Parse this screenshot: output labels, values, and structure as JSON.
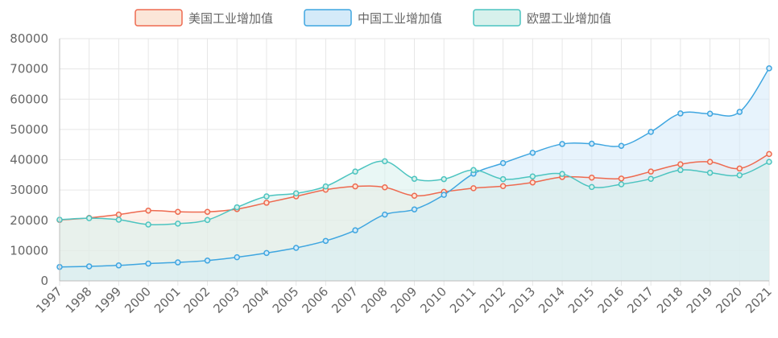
{
  "chart_data": {
    "type": "area",
    "categories": [
      "1997",
      "1998",
      "1999",
      "2000",
      "2001",
      "2002",
      "2003",
      "2004",
      "2005",
      "2006",
      "2007",
      "2008",
      "2009",
      "2010",
      "2011",
      "2012",
      "2013",
      "2014",
      "2015",
      "2016",
      "2017",
      "2018",
      "2019",
      "2020",
      "2021"
    ],
    "series": [
      {
        "name": "美国工业增加值",
        "line_color": "#ee6a50",
        "fill_color": "#fbe6d8",
        "values": [
          20100,
          20800,
          21900,
          23200,
          22800,
          22800,
          23700,
          25800,
          27900,
          30100,
          31200,
          30900,
          28100,
          29400,
          30600,
          31300,
          32500,
          34300,
          34100,
          33800,
          36100,
          38500,
          39300,
          37100,
          41900
        ]
      },
      {
        "name": "中国工业增加值",
        "line_color": "#3fa6e0",
        "fill_color": "#d4eaf9",
        "values": [
          4600,
          4800,
          5100,
          5700,
          6100,
          6700,
          7800,
          9200,
          10900,
          13200,
          16700,
          21900,
          23600,
          28400,
          35400,
          38900,
          42300,
          45200,
          45300,
          44600,
          49200,
          55300,
          55200,
          55800,
          70200
        ]
      },
      {
        "name": "欧盟工业增加值",
        "line_color": "#4cc4c0",
        "fill_color": "#d7f1ec",
        "values": [
          20200,
          20700,
          20200,
          18600,
          18900,
          20100,
          24300,
          27900,
          28900,
          31200,
          36100,
          39500,
          33700,
          33600,
          36600,
          33600,
          34500,
          35300,
          31000,
          31900,
          33700,
          36600,
          35700,
          34900,
          39300
        ]
      }
    ],
    "y_ticks": [
      "0",
      "10000",
      "20000",
      "30000",
      "40000",
      "50000",
      "60000",
      "70000",
      "80000"
    ],
    "ylim": [
      0,
      80000
    ],
    "legend_position": "top-center",
    "grid": true
  }
}
